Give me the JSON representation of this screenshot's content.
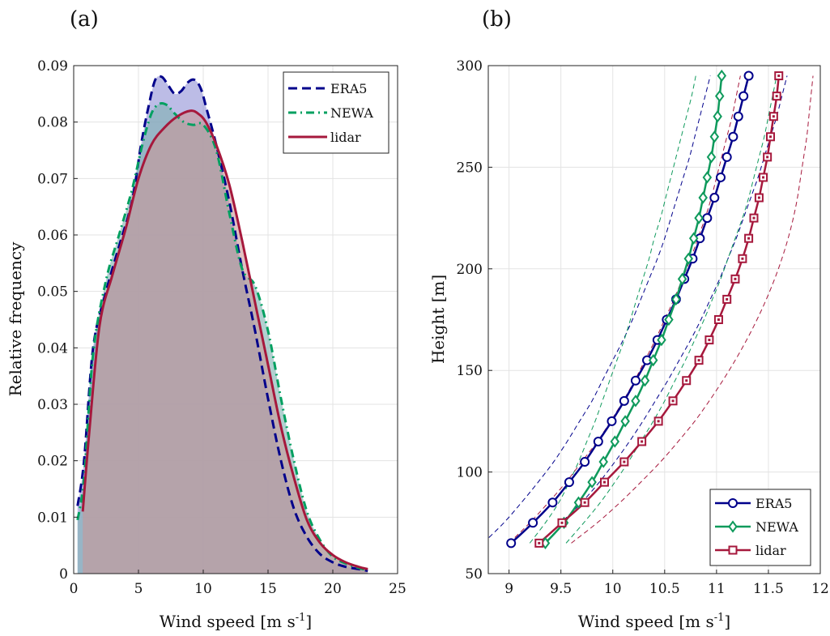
{
  "chart_data": [
    {
      "type": "area",
      "panel_label": "(a)",
      "xlabel": "Wind speed [m s",
      "xlabel_sup": "-1",
      "xlabel_end": "]",
      "ylabel": "Relative frequency",
      "xlim": [
        0,
        25
      ],
      "ylim": [
        0,
        0.09
      ],
      "xticks": [
        "0",
        "5",
        "10",
        "15",
        "20",
        "25"
      ],
      "yticks": [
        "0",
        "0.01",
        "0.02",
        "0.03",
        "0.04",
        "0.05",
        "0.06",
        "0.07",
        "0.08",
        "0.09"
      ],
      "grid": true,
      "legend_position": "top-right",
      "series": [
        {
          "name": "ERA5",
          "color": "#00008b",
          "fill": "#8f8fd6",
          "linestyle": "dashed",
          "x": [
            0.3,
            0.8,
            1.5,
            2.5,
            3.5,
            4.5,
            5.2,
            5.8,
            6.3,
            6.8,
            7.3,
            7.8,
            8.3,
            8.8,
            9.3,
            9.8,
            10.3,
            11,
            12,
            13,
            14,
            15,
            16,
            17,
            18,
            19,
            20,
            21,
            22,
            22.7
          ],
          "y": [
            0.012,
            0.02,
            0.04,
            0.05,
            0.058,
            0.066,
            0.076,
            0.083,
            0.0875,
            0.088,
            0.0865,
            0.085,
            0.0855,
            0.087,
            0.0875,
            0.086,
            0.082,
            0.076,
            0.066,
            0.054,
            0.043,
            0.031,
            0.02,
            0.0115,
            0.0065,
            0.0035,
            0.002,
            0.0012,
            0.0008,
            0.0005
          ]
        },
        {
          "name": "NEWA",
          "color": "#00a060",
          "fill": "#7fb0b0",
          "linestyle": "dashdot",
          "x": [
            0.3,
            0.8,
            1.5,
            2.5,
            3.5,
            4.5,
            5.3,
            6.0,
            6.6,
            7.2,
            7.8,
            8.5,
            9.2,
            10,
            11,
            12,
            13,
            14,
            15,
            16,
            17,
            18,
            19,
            20,
            21,
            22,
            22.7
          ],
          "y": [
            0.0095,
            0.017,
            0.039,
            0.052,
            0.06,
            0.068,
            0.076,
            0.0815,
            0.0832,
            0.083,
            0.0815,
            0.08,
            0.0795,
            0.0795,
            0.075,
            0.064,
            0.054,
            0.051,
            0.043,
            0.031,
            0.02,
            0.011,
            0.006,
            0.003,
            0.0018,
            0.001,
            0.0006
          ]
        },
        {
          "name": "lidar",
          "color": "#a6183c",
          "fill": "#c99898",
          "linestyle": "solid",
          "x": [
            0.7,
            1.2,
            2.0,
            3.0,
            4.0,
            5.0,
            6.0,
            7.0,
            8.0,
            9.0,
            9.6,
            10.2,
            11,
            12,
            13,
            14,
            15,
            16,
            17,
            18,
            19,
            20,
            21,
            22,
            22.7
          ],
          "y": [
            0.011,
            0.025,
            0.044,
            0.053,
            0.061,
            0.07,
            0.076,
            0.079,
            0.081,
            0.082,
            0.0815,
            0.08,
            0.076,
            0.069,
            0.059,
            0.048,
            0.037,
            0.026,
            0.017,
            0.0095,
            0.0055,
            0.0033,
            0.002,
            0.0012,
            0.0008
          ]
        }
      ]
    },
    {
      "type": "line",
      "panel_label": "(b)",
      "xlabel": "Wind speed [m s",
      "xlabel_sup": "-1",
      "xlabel_end": "]",
      "ylabel": "Height [m]",
      "xlim": [
        8.8,
        12
      ],
      "ylim": [
        50,
        300
      ],
      "xticks": [
        "9",
        "9.5",
        "10",
        "10.5",
        "11",
        "11.5",
        "12"
      ],
      "yticks": [
        "50",
        "100",
        "150",
        "200",
        "250",
        "300"
      ],
      "grid": true,
      "legend_position": "bottom-right",
      "heights": [
        65,
        75,
        85,
        95,
        105,
        115,
        125,
        135,
        145,
        155,
        165,
        175,
        185,
        195,
        205,
        215,
        225,
        235,
        245,
        255,
        265,
        275,
        285,
        295
      ],
      "series": [
        {
          "name": "ERA5",
          "color": "#00008b",
          "marker": "circle",
          "x": [
            9.02,
            9.23,
            9.42,
            9.58,
            9.73,
            9.86,
            9.99,
            10.11,
            10.22,
            10.33,
            10.43,
            10.52,
            10.61,
            10.69,
            10.77,
            10.84,
            10.91,
            10.98,
            11.04,
            11.1,
            11.16,
            11.21,
            11.26,
            11.31
          ],
          "band_low": [
            8.75,
            8.95,
            9.12,
            9.28,
            9.43,
            9.56,
            9.68,
            9.8,
            9.9,
            10.0,
            10.1,
            10.19,
            10.27,
            10.35,
            10.43,
            10.5,
            10.56,
            10.62,
            10.68,
            10.74,
            10.79,
            10.84,
            10.89,
            10.94
          ],
          "band_high": [
            9.3,
            9.5,
            9.7,
            9.87,
            10.02,
            10.16,
            10.29,
            10.41,
            10.53,
            10.64,
            10.75,
            10.85,
            10.94,
            11.03,
            11.11,
            11.19,
            11.26,
            11.33,
            11.4,
            11.46,
            11.52,
            11.58,
            11.63,
            11.68
          ]
        },
        {
          "name": "NEWA",
          "color": "#0f9a5c",
          "marker": "diamond",
          "x": [
            9.35,
            9.53,
            9.67,
            9.8,
            9.91,
            10.02,
            10.12,
            10.22,
            10.31,
            10.39,
            10.47,
            10.54,
            10.61,
            10.67,
            10.73,
            10.78,
            10.83,
            10.87,
            10.91,
            10.95,
            10.98,
            11.01,
            11.03,
            11.05
          ],
          "band_low": [
            9.2,
            9.35,
            9.48,
            9.58,
            9.67,
            9.75,
            9.83,
            9.9,
            9.97,
            10.04,
            10.11,
            10.17,
            10.23,
            10.29,
            10.35,
            10.4,
            10.46,
            10.51,
            10.56,
            10.61,
            10.66,
            10.71,
            10.76,
            10.8
          ],
          "band_high": [
            9.55,
            9.72,
            9.88,
            10.02,
            10.15,
            10.27,
            10.39,
            10.5,
            10.6,
            10.7,
            10.79,
            10.88,
            10.96,
            11.04,
            11.11,
            11.18,
            11.25,
            11.31,
            11.36,
            11.41,
            11.46,
            11.5,
            11.54,
            11.58
          ]
        },
        {
          "name": "lidar",
          "color": "#a6183c",
          "marker": "square",
          "x": [
            9.29,
            9.51,
            9.73,
            9.92,
            10.11,
            10.28,
            10.44,
            10.58,
            10.71,
            10.83,
            10.93,
            11.02,
            11.1,
            11.18,
            11.25,
            11.31,
            11.36,
            11.41,
            11.45,
            11.49,
            11.52,
            11.55,
            11.58,
            11.6
          ],
          "band_low": [
            9.0,
            9.2,
            9.38,
            9.55,
            9.7,
            9.85,
            9.98,
            10.1,
            10.21,
            10.31,
            10.41,
            10.5,
            10.59,
            10.67,
            10.75,
            10.82,
            10.89,
            10.95,
            11.0,
            11.05,
            11.1,
            11.15,
            11.19,
            11.23
          ],
          "band_high": [
            9.6,
            9.85,
            10.07,
            10.27,
            10.46,
            10.63,
            10.79,
            10.93,
            11.06,
            11.18,
            11.29,
            11.39,
            11.48,
            11.56,
            11.63,
            11.69,
            11.74,
            11.78,
            11.81,
            11.84,
            11.87,
            11.89,
            11.91,
            11.93
          ]
        }
      ]
    }
  ]
}
